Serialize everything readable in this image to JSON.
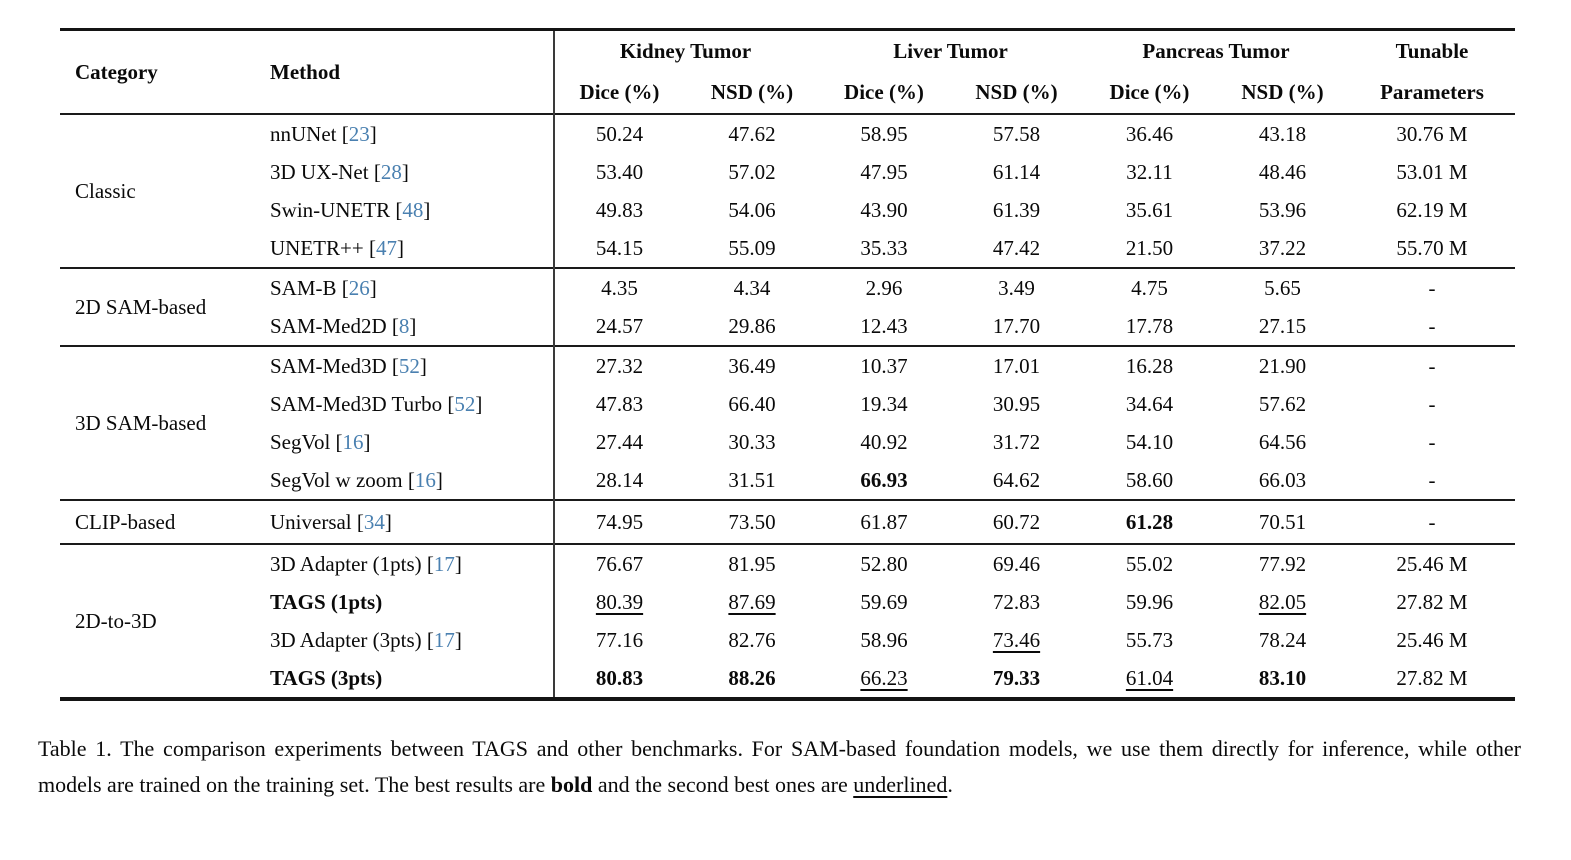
{
  "colors": {
    "citation": "#4a80b0",
    "text": "#0a0a0a",
    "rule": "#141414"
  },
  "table": {
    "header": {
      "category": "Category",
      "method": "Method",
      "groups": [
        {
          "label": "Kidney Tumor",
          "sub": [
            "Dice (%)",
            "NSD (%)"
          ]
        },
        {
          "label": "Liver Tumor",
          "sub": [
            "Dice (%)",
            "NSD (%)"
          ]
        },
        {
          "label": "Pancreas Tumor",
          "sub": [
            "Dice (%)",
            "NSD (%)"
          ]
        }
      ],
      "tunable": [
        "Tunable",
        "Parameters"
      ]
    },
    "sections": [
      {
        "category": "Classic",
        "rows": [
          {
            "method": "nnUNet",
            "bold": false,
            "cite": "23",
            "vals": [
              [
                "50.24",
                "n"
              ],
              [
                "47.62",
                "n"
              ],
              [
                "58.95",
                "n"
              ],
              [
                "57.58",
                "n"
              ],
              [
                "36.46",
                "n"
              ],
              [
                "43.18",
                "n"
              ]
            ],
            "params": "30.76 M"
          },
          {
            "method": "3D UX-Net",
            "bold": false,
            "cite": "28",
            "vals": [
              [
                "53.40",
                "n"
              ],
              [
                "57.02",
                "n"
              ],
              [
                "47.95",
                "n"
              ],
              [
                "61.14",
                "n"
              ],
              [
                "32.11",
                "n"
              ],
              [
                "48.46",
                "n"
              ]
            ],
            "params": "53.01 M"
          },
          {
            "method": "Swin-UNETR",
            "bold": false,
            "cite": "48",
            "vals": [
              [
                "49.83",
                "n"
              ],
              [
                "54.06",
                "n"
              ],
              [
                "43.90",
                "n"
              ],
              [
                "61.39",
                "n"
              ],
              [
                "35.61",
                "n"
              ],
              [
                "53.96",
                "n"
              ]
            ],
            "params": "62.19 M"
          },
          {
            "method": "UNETR++",
            "bold": false,
            "cite": "47",
            "vals": [
              [
                "54.15",
                "n"
              ],
              [
                "55.09",
                "n"
              ],
              [
                "35.33",
                "n"
              ],
              [
                "47.42",
                "n"
              ],
              [
                "21.50",
                "n"
              ],
              [
                "37.22",
                "n"
              ]
            ],
            "params": "55.70 M"
          }
        ]
      },
      {
        "category": "2D SAM-based",
        "rows": [
          {
            "method": "SAM-B",
            "bold": false,
            "cite": "26",
            "vals": [
              [
                "4.35",
                "n"
              ],
              [
                "4.34",
                "n"
              ],
              [
                "2.96",
                "n"
              ],
              [
                "3.49",
                "n"
              ],
              [
                "4.75",
                "n"
              ],
              [
                "5.65",
                "n"
              ]
            ],
            "params": "-"
          },
          {
            "method": "SAM-Med2D",
            "bold": false,
            "cite": "8",
            "vals": [
              [
                "24.57",
                "n"
              ],
              [
                "29.86",
                "n"
              ],
              [
                "12.43",
                "n"
              ],
              [
                "17.70",
                "n"
              ],
              [
                "17.78",
                "n"
              ],
              [
                "27.15",
                "n"
              ]
            ],
            "params": "-"
          }
        ]
      },
      {
        "category": "3D SAM-based",
        "rows": [
          {
            "method": "SAM-Med3D",
            "bold": false,
            "cite": "52",
            "vals": [
              [
                "27.32",
                "n"
              ],
              [
                "36.49",
                "n"
              ],
              [
                "10.37",
                "n"
              ],
              [
                "17.01",
                "n"
              ],
              [
                "16.28",
                "n"
              ],
              [
                "21.90",
                "n"
              ]
            ],
            "params": "-"
          },
          {
            "method": "SAM-Med3D Turbo",
            "bold": false,
            "cite": "52",
            "vals": [
              [
                "47.83",
                "n"
              ],
              [
                "66.40",
                "n"
              ],
              [
                "19.34",
                "n"
              ],
              [
                "30.95",
                "n"
              ],
              [
                "34.64",
                "n"
              ],
              [
                "57.62",
                "n"
              ]
            ],
            "params": "-"
          },
          {
            "method": "SegVol",
            "bold": false,
            "cite": "16",
            "vals": [
              [
                "27.44",
                "n"
              ],
              [
                "30.33",
                "n"
              ],
              [
                "40.92",
                "n"
              ],
              [
                "31.72",
                "n"
              ],
              [
                "54.10",
                "n"
              ],
              [
                "64.56",
                "n"
              ]
            ],
            "params": "-"
          },
          {
            "method": "SegVol w zoom",
            "bold": false,
            "cite": "16",
            "vals": [
              [
                "28.14",
                "n"
              ],
              [
                "31.51",
                "n"
              ],
              [
                "66.93",
                "b"
              ],
              [
                "64.62",
                "n"
              ],
              [
                "58.60",
                "n"
              ],
              [
                "66.03",
                "n"
              ]
            ],
            "params": "-"
          }
        ]
      },
      {
        "category": "CLIP-based",
        "tall": true,
        "rows": [
          {
            "method": "Universal",
            "bold": false,
            "cite": "34",
            "vals": [
              [
                "74.95",
                "n"
              ],
              [
                "73.50",
                "n"
              ],
              [
                "61.87",
                "n"
              ],
              [
                "60.72",
                "n"
              ],
              [
                "61.28",
                "b"
              ],
              [
                "70.51",
                "n"
              ]
            ],
            "params": "-"
          }
        ]
      },
      {
        "category": "2D-to-3D",
        "rows": [
          {
            "method": "3D Adapter (1pts)",
            "bold": false,
            "cite": "17",
            "vals": [
              [
                "76.67",
                "n"
              ],
              [
                "81.95",
                "n"
              ],
              [
                "52.80",
                "n"
              ],
              [
                "69.46",
                "n"
              ],
              [
                "55.02",
                "n"
              ],
              [
                "77.92",
                "n"
              ]
            ],
            "params": "25.46 M"
          },
          {
            "method": "TAGS (1pts)",
            "bold": true,
            "cite": null,
            "vals": [
              [
                "80.39",
                "u"
              ],
              [
                "87.69",
                "u"
              ],
              [
                "59.69",
                "n"
              ],
              [
                "72.83",
                "n"
              ],
              [
                "59.96",
                "n"
              ],
              [
                "82.05",
                "u"
              ]
            ],
            "params": "27.82 M"
          },
          {
            "method": "3D Adapter (3pts)",
            "bold": false,
            "cite": "17",
            "vals": [
              [
                "77.16",
                "n"
              ],
              [
                "82.76",
                "n"
              ],
              [
                "58.96",
                "n"
              ],
              [
                "73.46",
                "u"
              ],
              [
                "55.73",
                "n"
              ],
              [
                "78.24",
                "n"
              ]
            ],
            "params": "25.46 M"
          },
          {
            "method": "TAGS (3pts)",
            "bold": true,
            "cite": null,
            "vals": [
              [
                "80.83",
                "b"
              ],
              [
                "88.26",
                "b"
              ],
              [
                "66.23",
                "u"
              ],
              [
                "79.33",
                "b"
              ],
              [
                "61.04",
                "u"
              ],
              [
                "83.10",
                "b"
              ]
            ],
            "params": "27.82 M"
          }
        ]
      }
    ]
  },
  "caption": {
    "segments": [
      {
        "t": "Table 1. The comparison experiments between TAGS and other benchmarks. For SAM-based foundation models, we use them directly for inference, while other models are trained on the training set. The best results are ",
        "s": "n"
      },
      {
        "t": "bold",
        "s": "b"
      },
      {
        "t": " and the second best ones are ",
        "s": "n"
      },
      {
        "t": "underlined",
        "s": "u"
      },
      {
        "t": ".",
        "s": "n"
      }
    ]
  }
}
